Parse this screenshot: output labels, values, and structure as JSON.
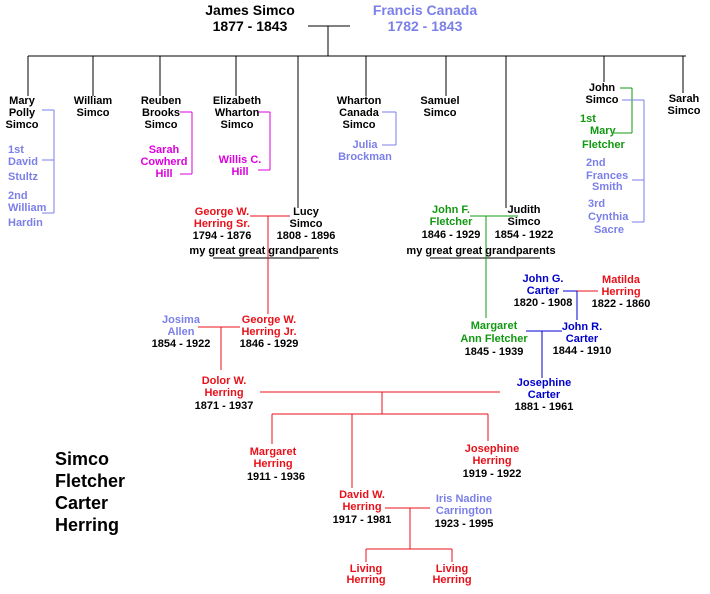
{
  "root": {
    "father": {
      "name": "James Simco",
      "years": "1877 - 1843"
    },
    "mother": {
      "name": "Francis Canada",
      "years": "1782 - 1843"
    }
  },
  "children": {
    "mary": [
      "Mary",
      "Polly",
      "Simco"
    ],
    "mary_spouses": [
      "1st",
      "David",
      "Stultz",
      "2nd",
      "William",
      "Hardin"
    ],
    "william": [
      "William",
      "Simco"
    ],
    "reuben": [
      "Reuben",
      "Brooks",
      "Simco"
    ],
    "reuben_spouse": [
      "Sarah",
      "Cowherd",
      "Hill"
    ],
    "elizabeth": [
      "Elizabeth",
      "Wharton",
      "Simco"
    ],
    "elizabeth_spouse": [
      "Willis C.",
      "Hill"
    ],
    "wharton": [
      "Wharton",
      "Canada",
      "Simco"
    ],
    "wharton_spouse": [
      "Julia",
      "Brockman"
    ],
    "samuel": [
      "Samuel",
      "Simco"
    ],
    "john": [
      "John",
      "Simco"
    ],
    "john_spouses": [
      "1st",
      "Mary",
      "Fletcher",
      "2nd",
      "Frances",
      "Smith",
      "3rd",
      "Cynthia",
      "Sacre"
    ],
    "sarah": [
      "Sarah",
      "Simco"
    ]
  },
  "gg_left": {
    "husband": [
      "George W.",
      "Herring Sr.",
      "1794 - 1876"
    ],
    "wife": [
      "Lucy",
      "Simco",
      "1808 - 1896"
    ],
    "caption": "my great great grandparents"
  },
  "gg_right": {
    "husband": [
      "John  F.",
      "Fletcher",
      "1846 - 1929"
    ],
    "wife": [
      "Judith",
      "Simco",
      "1854 - 1922"
    ],
    "caption": "my great great grandparents"
  },
  "carter_parents": {
    "husband": [
      "John G.",
      "Carter",
      "1820 - 1908"
    ],
    "wife": [
      "Matilda",
      "Herring",
      "1822 - 1860"
    ]
  },
  "gen3_left": {
    "wife": [
      "Josima",
      "Allen",
      "1854 - 1922"
    ],
    "husband": [
      "George W.",
      "Herring Jr.",
      "1846 - 1929"
    ]
  },
  "gen3_right": {
    "wife": [
      "Margaret",
      "Ann Fletcher",
      "1845 - 1939"
    ],
    "husband": [
      "John R.",
      "Carter",
      "1844 - 1910"
    ]
  },
  "gen2": {
    "husband": [
      "Dolor W.",
      "Herring",
      "1871 - 1937"
    ],
    "wife": [
      "Josephine",
      "Carter",
      "1881 - 1961"
    ]
  },
  "gen1": {
    "margaret": [
      "Margaret",
      "Herring",
      "1911 - 1936"
    ],
    "david": [
      "David W.",
      "Herring",
      "1917 - 1981"
    ],
    "josephine": [
      "Josephine",
      "Herring",
      "1919 - 1922"
    ],
    "iris": [
      "Iris Nadine",
      "Carrington",
      "1923 - 1995"
    ]
  },
  "living": {
    "left": [
      "Living",
      "Herring"
    ],
    "right": [
      "Living",
      "Herring"
    ]
  },
  "surnames": [
    "Simco",
    "Fletcher",
    "Carter",
    "Herring"
  ]
}
